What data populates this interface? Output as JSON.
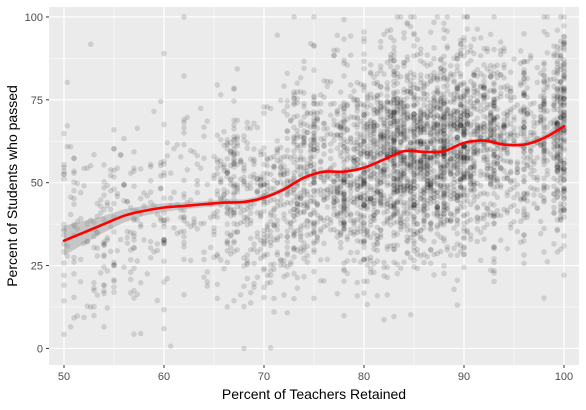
{
  "chart_data": {
    "type": "scatter",
    "title": "",
    "xlabel": "Percent of Teachers Retained",
    "ylabel": "Percent of Students who passed",
    "xlim": [
      48.5,
      101.5
    ],
    "ylim": [
      -5,
      103
    ],
    "x_ticks": [
      50,
      60,
      70,
      80,
      90,
      100
    ],
    "y_ticks": [
      0,
      25,
      50,
      75,
      100
    ],
    "x_tick_labels": [
      "50",
      "60",
      "70",
      "80",
      "90",
      "100"
    ],
    "y_tick_labels": [
      "0",
      "25",
      "50",
      "75",
      "100"
    ],
    "grid": true,
    "legend": "none",
    "colors": {
      "panel": "#ebebeb",
      "grid": "#ffffff",
      "points": "#000000",
      "smooth_line": "#ff0000",
      "ribbon": "#999999"
    },
    "scatter": {
      "description": "approx. 5000 points, semi-transparent black, dense between 75 and 98 percent retained",
      "point_alpha": 0.12
    },
    "smooth": {
      "x": [
        50,
        52,
        54,
        56,
        58,
        60,
        62,
        64,
        66,
        68,
        70,
        72,
        74,
        76,
        78,
        80,
        82,
        84,
        86,
        88,
        90,
        92,
        94,
        96,
        98,
        100
      ],
      "y": [
        32.5,
        35,
        37.5,
        40,
        41.5,
        42.5,
        43,
        43.5,
        44,
        44.2,
        45.5,
        48,
        51.5,
        53.3,
        53.3,
        54.5,
        57,
        59.5,
        59.3,
        59.5,
        62,
        62.7,
        61.5,
        61.5,
        63.5,
        67
      ],
      "lower": [
        28,
        31.5,
        35,
        38,
        40,
        41.2,
        42,
        42.6,
        43.1,
        43.4,
        44.7,
        47.3,
        50.9,
        52.8,
        52.9,
        54.1,
        56.7,
        59.2,
        59,
        59.2,
        61.7,
        62.3,
        61,
        60.9,
        62.6,
        64.8
      ],
      "upper": [
        37,
        38.5,
        40,
        42,
        43,
        43.8,
        44,
        44.4,
        44.9,
        45,
        46.3,
        48.7,
        52.1,
        53.8,
        53.7,
        54.9,
        57.3,
        59.8,
        59.6,
        59.8,
        62.3,
        63.1,
        62,
        62.1,
        64.4,
        69.2
      ]
    }
  }
}
